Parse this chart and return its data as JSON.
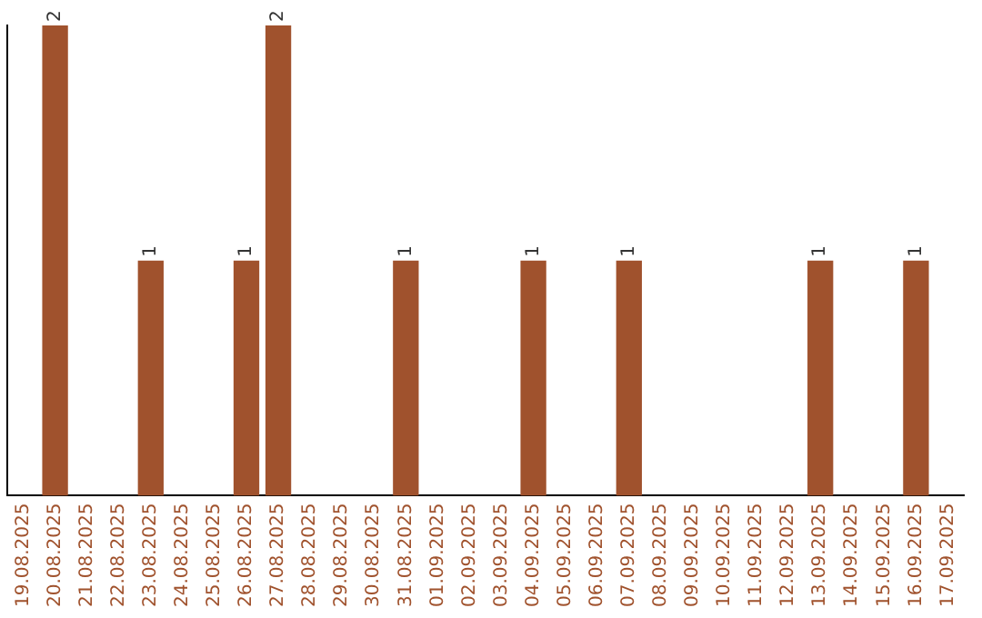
{
  "chart_data": {
    "type": "bar",
    "categories": [
      "19.08.2025",
      "20.08.2025",
      "21.08.2025",
      "22.08.2025",
      "23.08.2025",
      "24.08.2025",
      "25.08.2025",
      "26.08.2025",
      "27.08.2025",
      "28.08.2025",
      "29.08.2025",
      "30.08.2025",
      "31.08.2025",
      "01.09.2025",
      "02.09.2025",
      "03.09.2025",
      "04.09.2025",
      "05.09.2025",
      "06.09.2025",
      "07.09.2025",
      "08.09.2025",
      "09.09.2025",
      "10.09.2025",
      "11.09.2025",
      "12.09.2025",
      "13.09.2025",
      "14.09.2025",
      "15.09.2025",
      "16.09.2025",
      "17.09.2025"
    ],
    "values": [
      0,
      2,
      0,
      0,
      1,
      0,
      0,
      1,
      2,
      0,
      0,
      0,
      1,
      0,
      0,
      0,
      1,
      0,
      0,
      1,
      0,
      0,
      0,
      0,
      0,
      1,
      0,
      0,
      1,
      0
    ],
    "value_labels": [
      null,
      "2",
      null,
      null,
      "1",
      null,
      null,
      "1",
      "2",
      null,
      null,
      null,
      "1",
      null,
      null,
      null,
      "1",
      null,
      null,
      "1",
      null,
      null,
      null,
      null,
      null,
      "1",
      null,
      null,
      "1",
      null
    ],
    "color": "#a0522d",
    "tick_labels": "x",
    "grid": false,
    "legend": false
  }
}
